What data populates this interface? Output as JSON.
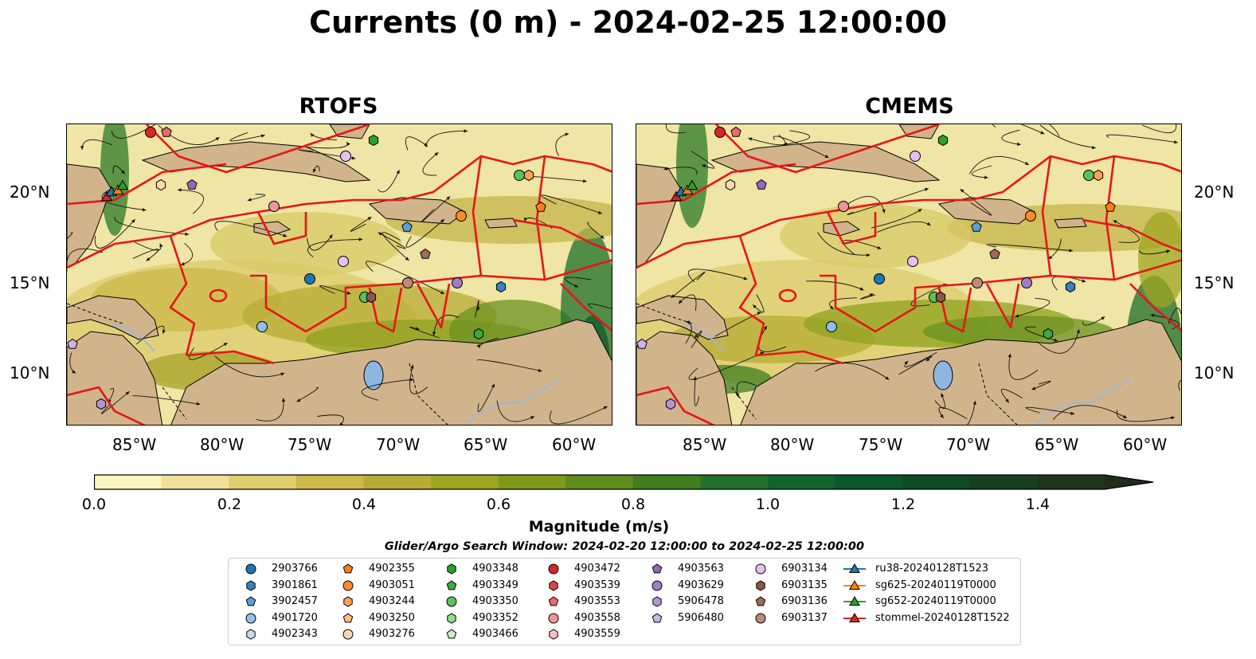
{
  "title": "Currents (0 m) - 2024-02-25 12:00:00",
  "panels": [
    {
      "title": "RTOFS"
    },
    {
      "title": "CMEMS"
    }
  ],
  "axes": {
    "lon_labels": [
      "85°W",
      "80°W",
      "75°W",
      "70°W",
      "65°W",
      "60°W"
    ],
    "lat_labels": [
      "20°N",
      "15°N",
      "10°N"
    ]
  },
  "colorbar": {
    "label": "Magnitude (m/s)",
    "ticks": [
      "0.0",
      "0.2",
      "0.4",
      "0.6",
      "0.8",
      "1.0",
      "1.2",
      "1.4"
    ],
    "range": [
      0,
      1.6
    ],
    "colors": [
      "#fdf6c0",
      "#f0e19a",
      "#e0cd6e",
      "#cfb94c",
      "#b9ac35",
      "#9ea522",
      "#7f9a1b",
      "#5f8c1c",
      "#3f7d1f",
      "#23702a",
      "#10642c",
      "#0c5728",
      "#0e4a24",
      "#16401f",
      "#1c361b",
      "#1f2d18"
    ]
  },
  "search_window": "Glider/Argo Search Window: 2024-02-20 12:00:00 to 2024-02-25 12:00:00",
  "legend": {
    "columns": [
      [
        {
          "label": "2903766",
          "marker": "circle",
          "color": "#1f77b4"
        },
        {
          "label": "3901861",
          "marker": "hexagon",
          "color": "#3a7fc0"
        },
        {
          "label": "3902457",
          "marker": "pentagon",
          "color": "#5aa0d8"
        },
        {
          "label": "4901720",
          "marker": "circle",
          "color": "#8fbfe8"
        },
        {
          "label": "4902343",
          "marker": "hexagon",
          "color": "#c6dcf0"
        }
      ],
      [
        {
          "label": "4902355",
          "marker": "pentagon",
          "color": "#ff7f0e"
        },
        {
          "label": "4903051",
          "marker": "circle",
          "color": "#ff8c2a"
        },
        {
          "label": "4903244",
          "marker": "hexagon",
          "color": "#ffa352"
        },
        {
          "label": "4903250",
          "marker": "pentagon",
          "color": "#ffbb80"
        },
        {
          "label": "4903276",
          "marker": "circle",
          "color": "#ffd8b0"
        }
      ],
      [
        {
          "label": "4903348",
          "marker": "hexagon",
          "color": "#2ca02c"
        },
        {
          "label": "4903349",
          "marker": "pentagon",
          "color": "#3caa3c"
        },
        {
          "label": "4903350",
          "marker": "circle",
          "color": "#5cc05c"
        },
        {
          "label": "4903352",
          "marker": "hexagon",
          "color": "#90dc8a"
        },
        {
          "label": "4903466",
          "marker": "pentagon",
          "color": "#c8f0c0"
        }
      ],
      [
        {
          "label": "4903472",
          "marker": "circle",
          "color": "#d62728"
        },
        {
          "label": "4903539",
          "marker": "hexagon",
          "color": "#de4444"
        },
        {
          "label": "4903553",
          "marker": "pentagon",
          "color": "#e86a6a"
        },
        {
          "label": "4903558",
          "marker": "circle",
          "color": "#f09595"
        },
        {
          "label": "4903559",
          "marker": "hexagon",
          "color": "#f8c0c0"
        }
      ],
      [
        {
          "label": "4903563",
          "marker": "pentagon",
          "color": "#9467bd"
        },
        {
          "label": "4903629",
          "marker": "circle",
          "color": "#a27bc8"
        },
        {
          "label": "5906478",
          "marker": "hexagon",
          "color": "#b594d6"
        },
        {
          "label": "5906480",
          "marker": "pentagon",
          "color": "#cdb4e6"
        }
      ],
      [
        {
          "label": "6903134",
          "marker": "circle",
          "color": "#e8c0f0"
        },
        {
          "label": "6903135",
          "marker": "hexagon",
          "color": "#8c564b"
        },
        {
          "label": "6903136",
          "marker": "pentagon",
          "color": "#a06a5c"
        },
        {
          "label": "6903137",
          "marker": "circle",
          "color": "#c08878"
        }
      ],
      [
        {
          "label": "ru38-20240128T1523",
          "marker": "triangle-line",
          "color": "#1f77b4"
        },
        {
          "label": "sg625-20240119T0000",
          "marker": "triangle-line",
          "color": "#ff7f0e"
        },
        {
          "label": "sg652-20240119T0000",
          "marker": "triangle-line",
          "color": "#2ca02c"
        },
        {
          "label": "stommel-20240128T1522",
          "marker": "triangle-line",
          "color": "#d62728"
        }
      ]
    ]
  }
}
